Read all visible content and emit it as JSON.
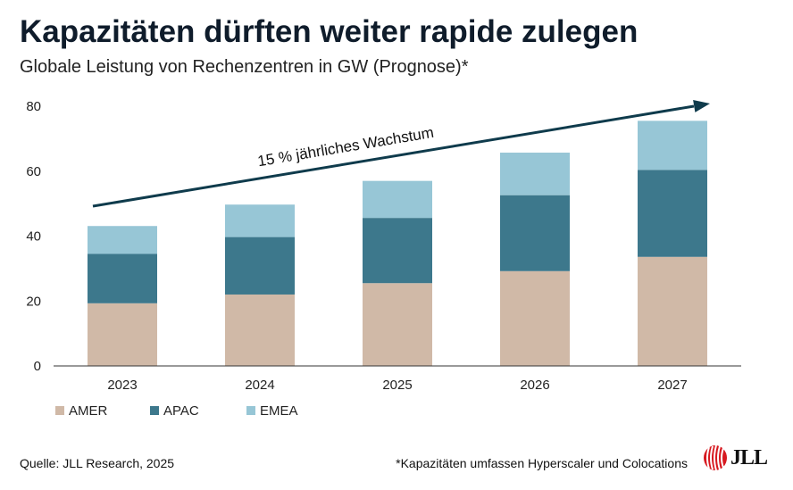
{
  "title": "Kapazitäten dürften weiter rapide zulegen",
  "subtitle": "Globale Leistung von Rechenzentren in GW (Prognose)*",
  "chart_data": {
    "type": "bar",
    "stacked": true,
    "categories": [
      "2023",
      "2024",
      "2025",
      "2026",
      "2027"
    ],
    "series": [
      {
        "name": "AMER",
        "values": [
          19.3,
          22.0,
          25.5,
          29.2,
          33.6
        ],
        "color": "#d0b9a7"
      },
      {
        "name": "APAC",
        "values": [
          15.2,
          17.7,
          20.1,
          23.4,
          26.8
        ],
        "color": "#3d788c"
      },
      {
        "name": "EMEA",
        "values": [
          8.6,
          10.0,
          11.4,
          13.1,
          15.1
        ],
        "color": "#97c6d6"
      }
    ],
    "ylim": [
      0,
      80
    ],
    "yticks": [
      0,
      20,
      40,
      60,
      80
    ],
    "grid": false,
    "legend_position": "bottom-left",
    "annotation": {
      "text": "15 % jährliches Wachstum",
      "color": "#0f3b4c"
    }
  },
  "footer": {
    "source": "Quelle: JLL Research, 2025",
    "note": "*Kapazitäten umfassen Hyperscaler und Colocations",
    "logo_text": "JLL"
  }
}
